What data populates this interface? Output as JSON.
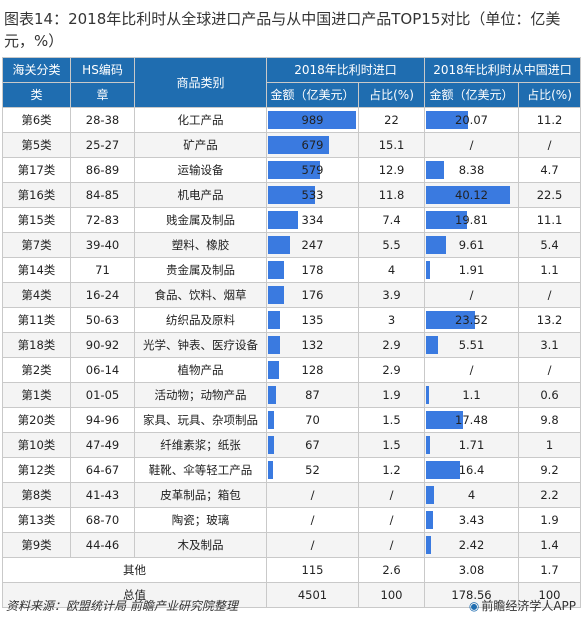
{
  "title": "图表14：2018年比利时从全球进口产品与从中国进口产品TOP15对比（单位：亿美元，%）",
  "headers": {
    "customs_class_top": "海关分类",
    "customs_class_bottom": "类",
    "hs_code_top": "HS编码",
    "hs_code_bottom": "章",
    "category": "商品类别",
    "global_group": "2018年比利时进口",
    "china_group": "2018年比利时从中国进口",
    "amount": "金额（亿美元）",
    "share": "占比(%)",
    "amount2": "金额（亿美元）",
    "share2": "占比(%)"
  },
  "rows": [
    {
      "cls": "第6类",
      "hs": "28-38",
      "cat": "化工产品",
      "g_amt": "989",
      "g_share": "22",
      "c_amt": "20.07",
      "c_share": "11.2"
    },
    {
      "cls": "第5类",
      "hs": "25-27",
      "cat": "矿产品",
      "g_amt": "679",
      "g_share": "15.1",
      "c_amt": "/",
      "c_share": "/"
    },
    {
      "cls": "第17类",
      "hs": "86-89",
      "cat": "运输设备",
      "g_amt": "579",
      "g_share": "12.9",
      "c_amt": "8.38",
      "c_share": "4.7"
    },
    {
      "cls": "第16类",
      "hs": "84-85",
      "cat": "机电产品",
      "g_amt": "533",
      "g_share": "11.8",
      "c_amt": "40.12",
      "c_share": "22.5"
    },
    {
      "cls": "第15类",
      "hs": "72-83",
      "cat": "贱金属及制品",
      "g_amt": "334",
      "g_share": "7.4",
      "c_amt": "19.81",
      "c_share": "11.1"
    },
    {
      "cls": "第7类",
      "hs": "39-40",
      "cat": "塑料、橡胶",
      "g_amt": "247",
      "g_share": "5.5",
      "c_amt": "9.61",
      "c_share": "5.4"
    },
    {
      "cls": "第14类",
      "hs": "71",
      "cat": "贵金属及制品",
      "g_amt": "178",
      "g_share": "4",
      "c_amt": "1.91",
      "c_share": "1.1"
    },
    {
      "cls": "第4类",
      "hs": "16-24",
      "cat": "食品、饮料、烟草",
      "g_amt": "176",
      "g_share": "3.9",
      "c_amt": "/",
      "c_share": "/"
    },
    {
      "cls": "第11类",
      "hs": "50-63",
      "cat": "纺织品及原料",
      "g_amt": "135",
      "g_share": "3",
      "c_amt": "23.52",
      "c_share": "13.2"
    },
    {
      "cls": "第18类",
      "hs": "90-92",
      "cat": "光学、钟表、医疗设备",
      "g_amt": "132",
      "g_share": "2.9",
      "c_amt": "5.51",
      "c_share": "3.1"
    },
    {
      "cls": "第2类",
      "hs": "06-14",
      "cat": "植物产品",
      "g_amt": "128",
      "g_share": "2.9",
      "c_amt": "/",
      "c_share": "/"
    },
    {
      "cls": "第1类",
      "hs": "01-05",
      "cat": "活动物；动物产品",
      "g_amt": "87",
      "g_share": "1.9",
      "c_amt": "1.1",
      "c_share": "0.6"
    },
    {
      "cls": "第20类",
      "hs": "94-96",
      "cat": "家具、玩具、杂项制品",
      "g_amt": "70",
      "g_share": "1.5",
      "c_amt": "17.48",
      "c_share": "9.8"
    },
    {
      "cls": "第10类",
      "hs": "47-49",
      "cat": "纤维素浆；纸张",
      "g_amt": "67",
      "g_share": "1.5",
      "c_amt": "1.71",
      "c_share": "1"
    },
    {
      "cls": "第12类",
      "hs": "64-67",
      "cat": "鞋靴、伞等轻工产品",
      "g_amt": "52",
      "g_share": "1.2",
      "c_amt": "16.4",
      "c_share": "9.2"
    },
    {
      "cls": "第8类",
      "hs": "41-43",
      "cat": "皮革制品；箱包",
      "g_amt": "/",
      "g_share": "/",
      "c_amt": "4",
      "c_share": "2.2"
    },
    {
      "cls": "第13类",
      "hs": "68-70",
      "cat": "陶瓷；玻璃",
      "g_amt": "/",
      "g_share": "/",
      "c_amt": "3.43",
      "c_share": "1.9"
    },
    {
      "cls": "第9类",
      "hs": "44-46",
      "cat": "木及制品",
      "g_amt": "/",
      "g_share": "/",
      "c_amt": "2.42",
      "c_share": "1.4"
    }
  ],
  "other": {
    "label": "其他",
    "g_amt": "115",
    "g_share": "2.6",
    "c_amt": "3.08",
    "c_share": "1.7"
  },
  "total": {
    "label": "总值",
    "g_amt": "4501",
    "g_share": "100",
    "c_amt": "178.56",
    "c_share": "100"
  },
  "footer": {
    "source": "资料来源：欧盟统计局 前瞻产业研究院整理",
    "brand": "前瞻经济学人APP"
  },
  "colors": {
    "header": "#1f6db0",
    "bar": "#3a7ae0"
  }
}
